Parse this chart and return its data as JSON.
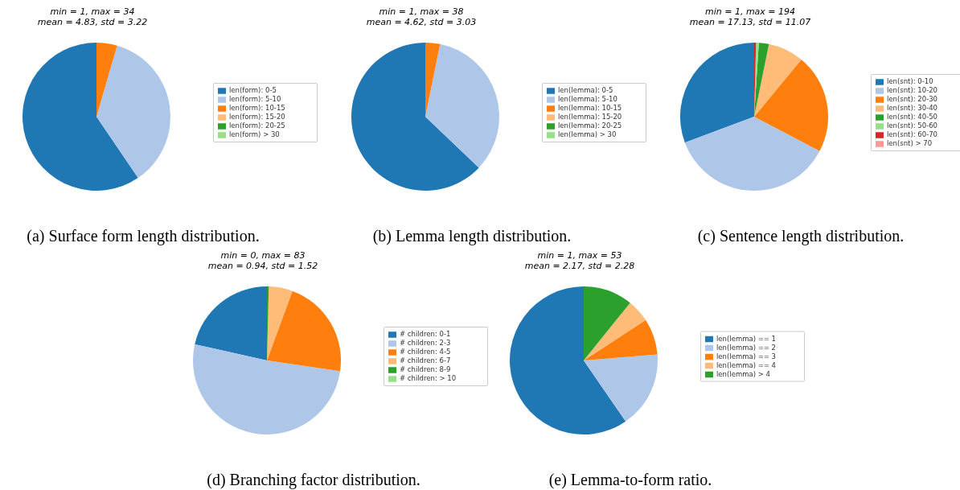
{
  "chart_data": [
    {
      "type": "pie",
      "title": "(a) Surface form length distribution.",
      "subtitle": "min = 1,  max = 34\nmean = 4.83,  std = 3.22",
      "categories": [
        "len(form): 0-5",
        "len(form): 5-10",
        "len(form): 10-15",
        "len(form): 15-20",
        "len(form): 20-25",
        "len(form) > 30"
      ],
      "values": [
        59.5,
        36,
        4.5,
        null,
        0,
        0
      ],
      "colors": [
        "#1f77b4",
        "#aec7e8",
        "#ff7f0e",
        "#ffbb78",
        "#2ca02c",
        "#98df8a"
      ],
      "legend": "right"
    },
    {
      "type": "pie",
      "title": "(b) Lemma length distribution.",
      "subtitle": "min = 1,  max = 38\nmean = 4.62,  std = 3.03",
      "categories": [
        "len(lemma): 0-5",
        "len(lemma): 5-10",
        "len(lemma): 10-15",
        "len(lemma): 15-20",
        "len(lemma): 20-25",
        "len(lemma) > 30"
      ],
      "values": [
        62.9,
        33.9,
        3.2,
        0,
        0,
        0
      ],
      "colors": [
        "#1f77b4",
        "#aec7e8",
        "#ff7f0e",
        "#ffbb78",
        "#2ca02c",
        "#98df8a"
      ],
      "legend": "right"
    },
    {
      "type": "pie",
      "title": "(c) Sentence length distribution.",
      "subtitle": "min = 1,  max = 194\nmean = 17.13,  std = 11.07",
      "categories": [
        "len(snt): 0-10",
        "len(snt): 10-20",
        "len(snt): 20-30",
        "len(snt): 30-40",
        "len(snt): 40-50",
        "len(snt): 50-60",
        "len(snt): 60-70",
        "len(snt) > 70"
      ],
      "values": [
        30.7,
        36.6,
        21.7,
        7.8,
        2.2,
        0.6,
        0.4,
        null
      ],
      "colors": [
        "#1f77b4",
        "#aec7e8",
        "#ff7f0e",
        "#ffbb78",
        "#2ca02c",
        "#98df8a",
        "#d62728",
        "#ff9896"
      ],
      "legend": "right"
    },
    {
      "type": "pie",
      "title": "(d) Branching factor distribution.",
      "subtitle": "min = 0,  max = 83\nmean = 0.94,  std = 1.52",
      "categories": [
        "# children: 0-1",
        "# children: 2-3",
        "# children: 4-5",
        "# children: 6-7",
        "# children: 8-9",
        "# children: > 10"
      ],
      "values": [
        21.5,
        51.2,
        21.7,
        5.2,
        0.4,
        0
      ],
      "colors": [
        "#1f77b4",
        "#aec7e8",
        "#ff7f0e",
        "#ffbb78",
        "#2ca02c",
        "#98df8a"
      ],
      "legend": "right"
    },
    {
      "type": "pie",
      "title": "(e) Lemma-to-form ratio.",
      "subtitle": "min = 1,  max = 53\nmean = 2.17,  std = 2.28",
      "categories": [
        "len(lemma) == 1",
        "len(lemma) == 2",
        "len(lemma) == 3",
        "len(lemma) == 4",
        "len(lemma) > 4"
      ],
      "values": [
        59.6,
        16.7,
        7.9,
        5.0,
        10.8
      ],
      "colors": [
        "#1f77b4",
        "#aec7e8",
        "#ff7f0e",
        "#ffbb78",
        "#2ca02c"
      ],
      "legend": "right"
    }
  ]
}
